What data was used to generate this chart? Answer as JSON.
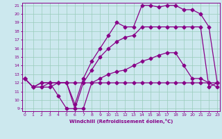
{
  "xlabel": "Windchill (Refroidissement éolien,°C)",
  "bg_color": "#cce8ee",
  "line_color": "#880088",
  "grid_color": "#99ccbb",
  "xmin": 0,
  "xmax": 23,
  "ymin": 9,
  "ymax": 21,
  "line1_x": [
    0,
    1,
    2,
    3,
    4,
    5,
    6,
    7,
    8,
    9,
    10,
    11,
    12,
    13,
    14,
    15,
    16,
    17,
    18,
    19,
    20,
    21,
    22,
    23
  ],
  "line1_y": [
    12.5,
    11.5,
    11.5,
    11.5,
    12.0,
    12.0,
    9.0,
    9.0,
    12.0,
    12.0,
    12.0,
    12.0,
    12.0,
    12.0,
    12.0,
    12.0,
    12.0,
    12.0,
    12.0,
    12.0,
    12.0,
    12.0,
    12.0,
    12.0
  ],
  "line2_x": [
    0,
    1,
    2,
    3,
    4,
    5,
    6,
    7,
    8,
    9,
    10,
    11,
    12,
    13,
    14,
    15,
    16,
    17,
    18,
    19,
    20,
    21,
    22,
    23
  ],
  "line2_y": [
    12.5,
    11.5,
    11.5,
    12.0,
    10.5,
    9.0,
    9.0,
    12.0,
    13.5,
    15.0,
    16.0,
    16.8,
    17.3,
    17.5,
    18.5,
    18.5,
    18.5,
    18.5,
    18.5,
    18.5,
    18.5,
    18.5,
    11.5,
    12.0
  ],
  "line3_x": [
    0,
    1,
    2,
    3,
    4,
    5,
    6,
    7,
    8,
    9,
    10,
    11,
    12,
    13,
    14,
    15,
    16,
    17,
    18,
    19,
    20,
    21,
    22,
    23
  ],
  "line3_y": [
    12.5,
    11.5,
    12.0,
    12.0,
    12.0,
    12.0,
    12.0,
    12.0,
    12.0,
    12.5,
    13.0,
    13.3,
    13.5,
    14.0,
    14.5,
    14.8,
    15.2,
    15.5,
    15.5,
    14.0,
    12.5,
    12.5,
    12.0,
    11.5
  ],
  "line4_x": [
    0,
    1,
    2,
    3,
    4,
    5,
    6,
    7,
    8,
    9,
    10,
    11,
    12,
    13,
    14,
    15,
    16,
    17,
    18,
    19,
    20,
    21,
    22,
    23
  ],
  "line4_y": [
    12.5,
    11.5,
    12.0,
    12.0,
    12.0,
    12.0,
    9.5,
    12.5,
    14.5,
    16.0,
    17.5,
    19.0,
    18.5,
    18.5,
    21.0,
    21.0,
    20.8,
    21.0,
    21.0,
    20.5,
    20.5,
    20.0,
    18.5,
    12.0
  ]
}
